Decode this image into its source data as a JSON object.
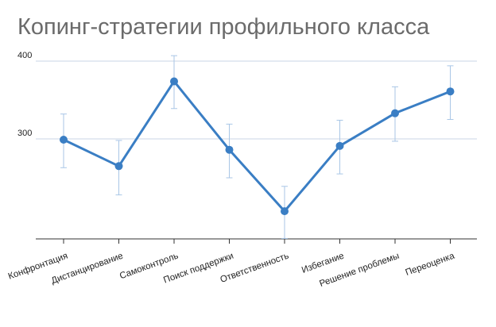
{
  "chart_data": {
    "type": "line",
    "title": "Копинг-стратегии профильного класса",
    "xlabel": "",
    "ylabel": "",
    "categories": [
      "Конфронтация",
      "Дистанцирование",
      "Самоконтроль",
      "Поиск поддержки",
      "Ответственность",
      "Избегание",
      "Решение проблемы",
      "Переоценка"
    ],
    "values": [
      299,
      265,
      374,
      286,
      207,
      291,
      333,
      361
    ],
    "error_high": [
      332,
      298,
      407,
      319,
      239,
      324,
      367,
      394
    ],
    "error_low": [
      263,
      228,
      339,
      250,
      172,
      255,
      297,
      325
    ],
    "yticks": [
      300,
      400
    ],
    "ylim": [
      172,
      412
    ],
    "grid": true,
    "colors": {
      "line": "#3a7ec4",
      "error_bar": "#a9c6e6",
      "grid": "#c8d6e5",
      "axis": "#333333"
    }
  }
}
